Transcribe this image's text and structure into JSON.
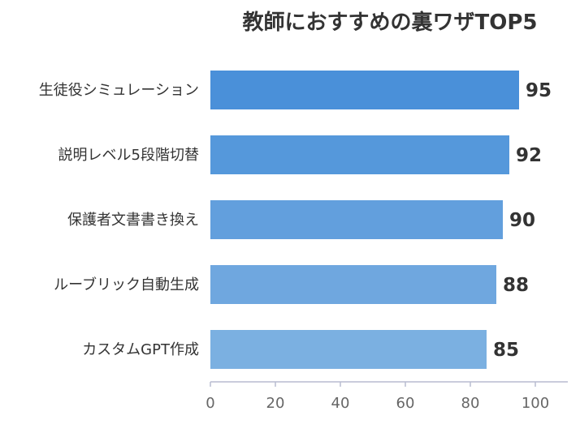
{
  "chart_data": {
    "type": "bar",
    "orientation": "horizontal",
    "title": "教師におすすめの裏ワザTOP5",
    "categories": [
      "生徒役シミュレーション",
      "説明レベル5段階切替",
      "保護者文書書き換え",
      "ルーブリック自動生成",
      "カスタムGPT作成"
    ],
    "values": [
      95,
      92,
      90,
      88,
      85
    ],
    "xlim": [
      0,
      110
    ],
    "xticks": [
      0,
      20,
      40,
      60,
      80,
      100
    ],
    "xlabel": "",
    "ylabel": "",
    "grid": false,
    "legend": "none",
    "colors": [
      "#4a90d9",
      "#5598db",
      "#629fdd",
      "#6fa7df",
      "#7bb0e1"
    ],
    "data_labels": true
  }
}
